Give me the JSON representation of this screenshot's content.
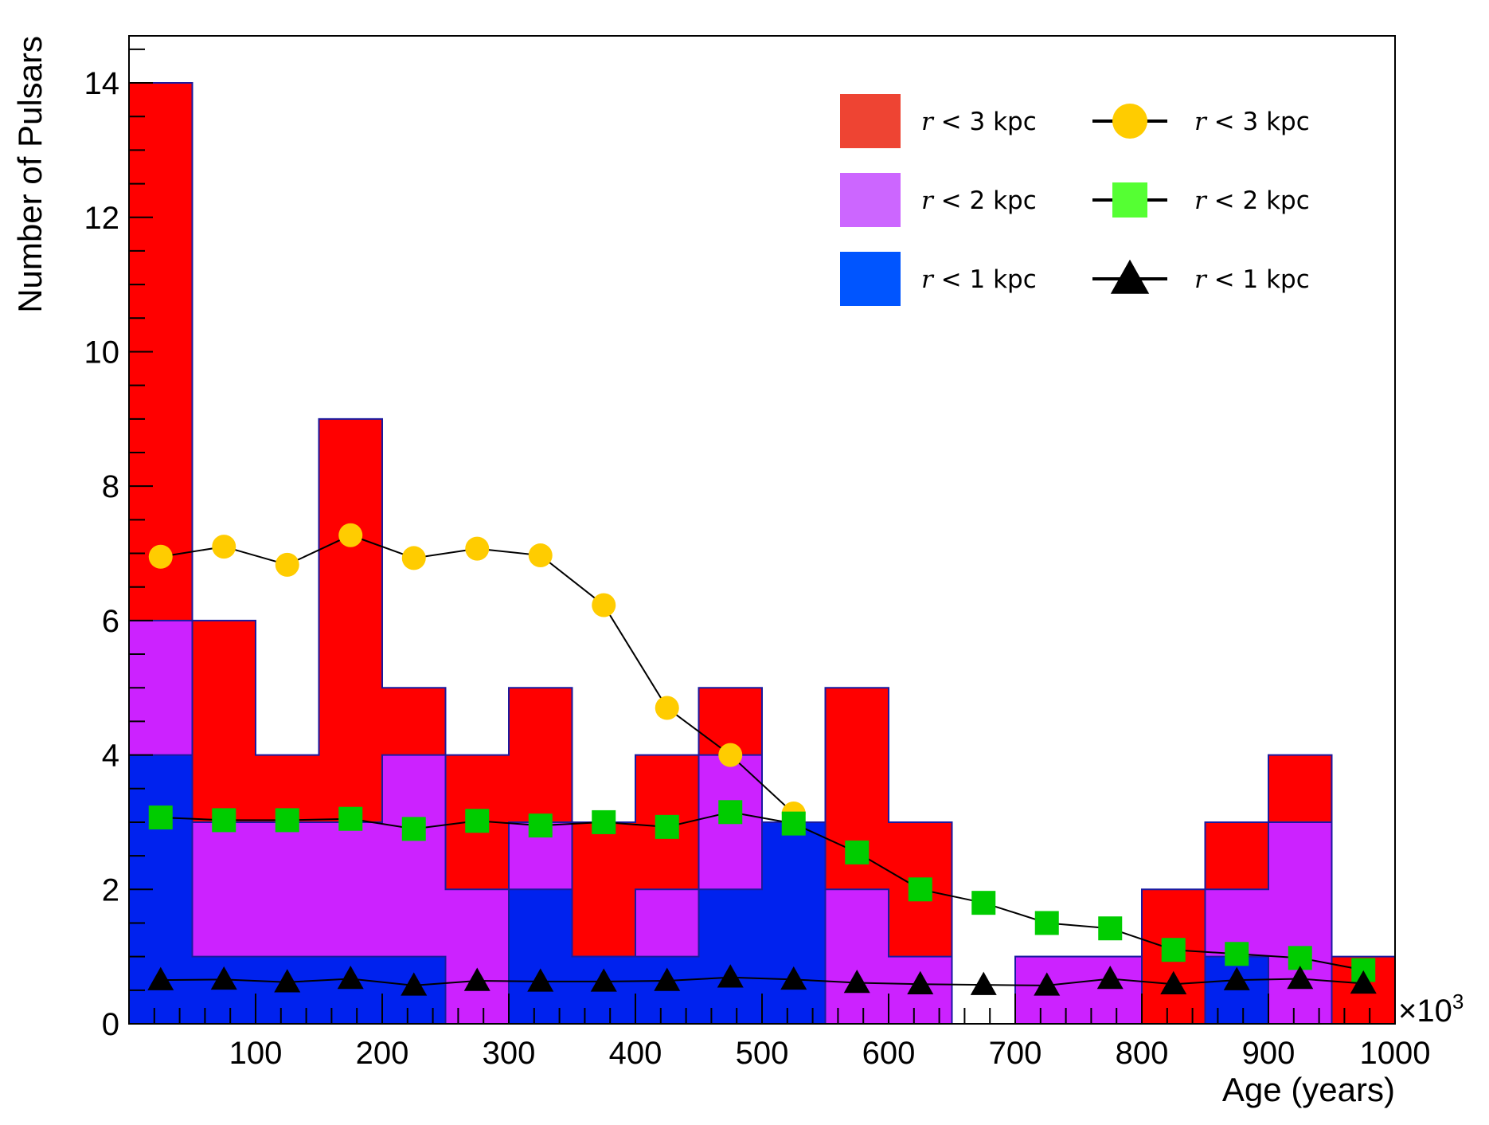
{
  "chart_data": {
    "type": "bar",
    "xlabel": "Age (years)",
    "ylabel": "Number of Pulsars",
    "x_multiplier": "×10",
    "x_multiplier_exp": "3",
    "xlim": [
      0,
      1000
    ],
    "ylim": [
      0,
      14.7
    ],
    "grid": false,
    "legend_position": "top-right",
    "x_ticks": [
      "100",
      "200",
      "300",
      "400",
      "500",
      "600",
      "700",
      "800",
      "900",
      "1000"
    ],
    "y_ticks": [
      "0",
      "2",
      "4",
      "6",
      "8",
      "10",
      "12",
      "14"
    ],
    "bin_width": 50,
    "bin_edges": [
      0,
      50,
      100,
      150,
      200,
      250,
      300,
      350,
      400,
      450,
      500,
      550,
      600,
      650,
      700,
      750,
      800,
      850,
      900,
      950,
      1000
    ],
    "histograms": [
      {
        "label": "r < 3 kpc",
        "var": "r",
        "text": " < 3 kpc",
        "color": "#ff0000",
        "legend_color": "#ee4433",
        "values": [
          14,
          6,
          4,
          9,
          5,
          4,
          5,
          3,
          4,
          5,
          3,
          5,
          3,
          0,
          1,
          1,
          2,
          3,
          4,
          1
        ]
      },
      {
        "label": "r < 2 kpc",
        "var": "r",
        "text": " < 2 kpc",
        "color": "#cc22ff",
        "legend_color": "#cc66ff",
        "values": [
          6,
          3,
          3,
          3,
          4,
          2,
          3,
          1,
          2,
          4,
          3,
          2,
          1,
          0,
          1,
          1,
          0,
          2,
          3,
          0
        ]
      },
      {
        "label": "r < 1 kpc",
        "var": "r",
        "text": " < 1 kpc",
        "color": "#0022ee",
        "legend_color": "#0055ff",
        "values": [
          4,
          1,
          1,
          1,
          1,
          0,
          2,
          1,
          1,
          2,
          3,
          0,
          0,
          0,
          0,
          0,
          0,
          1,
          0,
          0
        ]
      }
    ],
    "outline_color": "#1a1aa0",
    "series": [
      {
        "name": "r < 3 kpc",
        "var": "r",
        "text": " < 3 kpc",
        "marker": "circle",
        "color": "#ffcc00",
        "x": [
          25,
          75,
          125,
          175,
          225,
          275,
          325,
          375,
          425,
          475,
          525
        ],
        "values": [
          6.95,
          7.1,
          6.83,
          7.27,
          6.93,
          7.07,
          6.97,
          6.23,
          4.7,
          4.0,
          3.13
        ]
      },
      {
        "name": "r < 2 kpc",
        "var": "r",
        "text": " < 2 kpc",
        "marker": "square",
        "color": "#00cc00",
        "legend_color": "#55ff33",
        "x": [
          25,
          75,
          125,
          175,
          225,
          275,
          325,
          375,
          425,
          475,
          525,
          575,
          625,
          675,
          725,
          775,
          825,
          875,
          925,
          975
        ],
        "values": [
          3.07,
          3.03,
          3.03,
          3.05,
          2.9,
          3.02,
          2.95,
          3.0,
          2.93,
          3.15,
          2.98,
          2.55,
          2.0,
          1.8,
          1.5,
          1.42,
          1.1,
          1.04,
          0.98,
          0.8
        ]
      },
      {
        "name": "r < 1 kpc",
        "var": "r",
        "text": " < 1 kpc",
        "marker": "triangle",
        "color": "#000000",
        "x": [
          25,
          75,
          125,
          175,
          225,
          275,
          325,
          375,
          425,
          475,
          525,
          575,
          625,
          675,
          725,
          775,
          825,
          875,
          925,
          975
        ],
        "values": [
          0.65,
          0.66,
          0.62,
          0.67,
          0.57,
          0.64,
          0.63,
          0.63,
          0.64,
          0.69,
          0.66,
          0.61,
          0.59,
          0.58,
          0.57,
          0.67,
          0.59,
          0.65,
          0.67,
          0.6
        ]
      }
    ]
  }
}
